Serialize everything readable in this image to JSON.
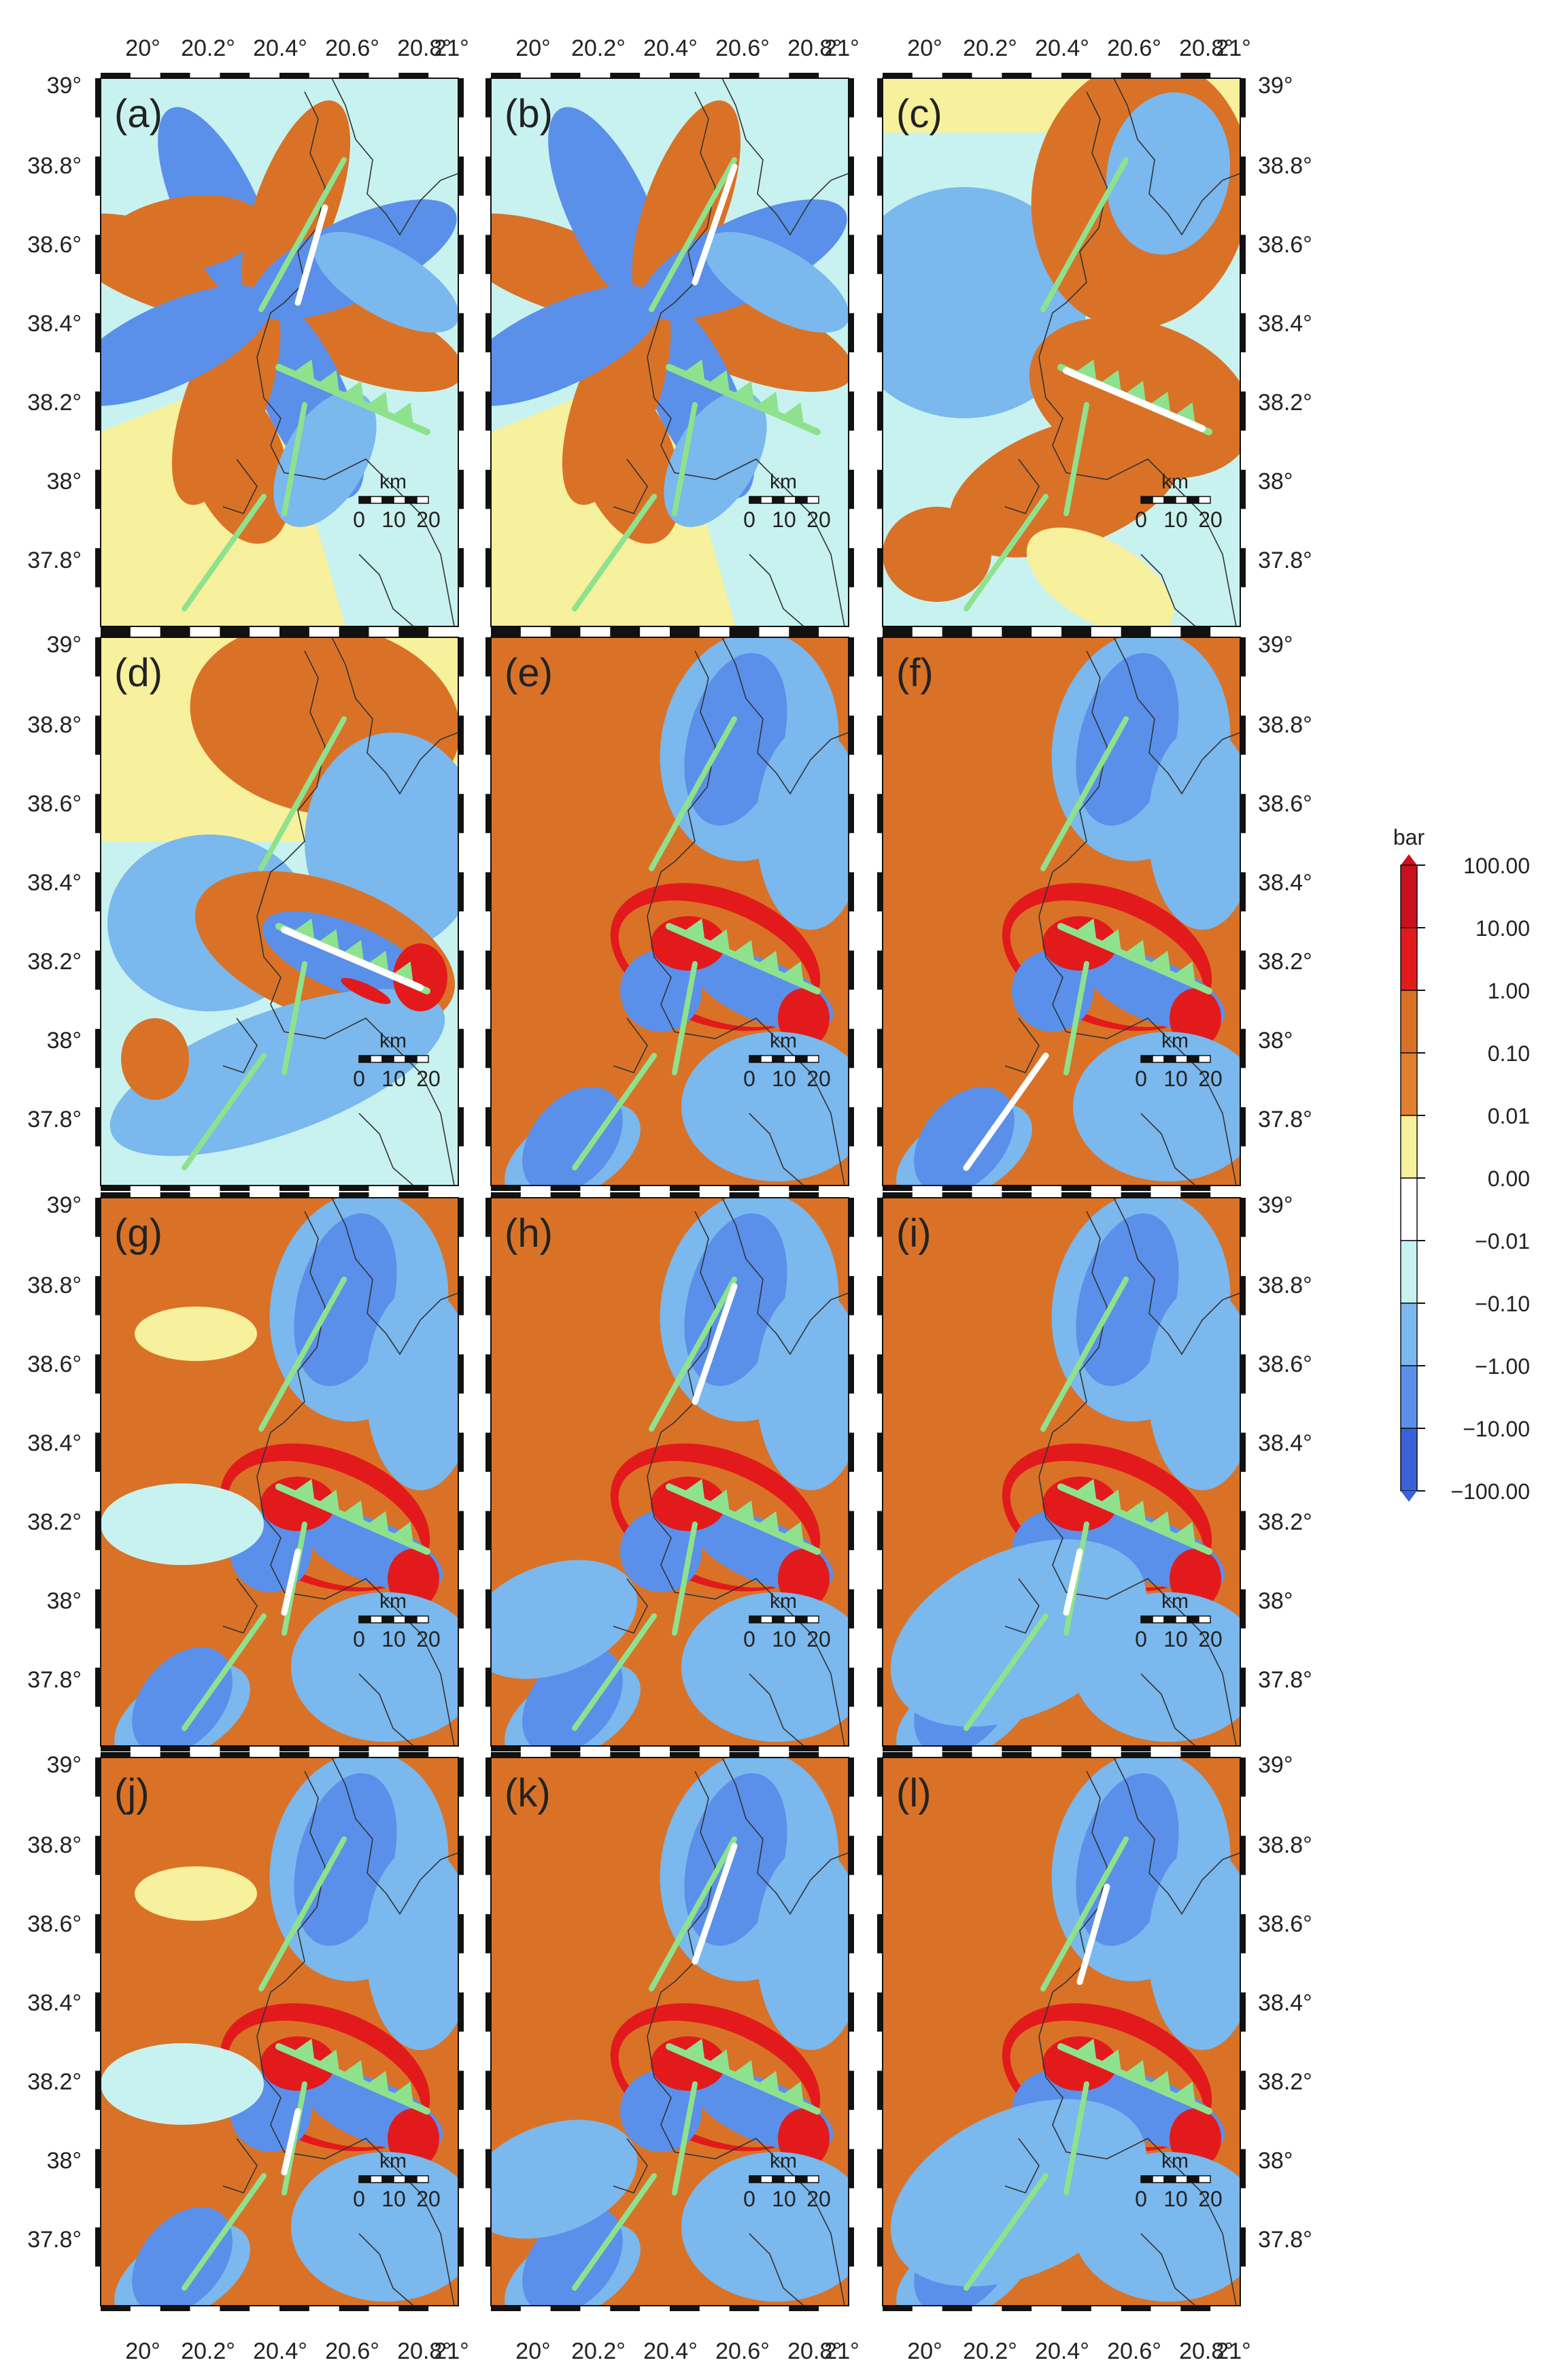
{
  "figure": {
    "top_lon_labels": [
      "20°",
      "20.2°",
      "20.4°",
      "20.6°",
      "20.8°",
      "21°"
    ],
    "bottom_lon_labels": [
      "20°",
      "20.2°",
      "20.4°",
      "20.6°",
      "20.8°",
      "21°"
    ],
    "left_lat_labels": [
      "39°",
      "38.8°",
      "38.6°",
      "38.4°",
      "38.2°",
      "38°",
      "37.8°"
    ],
    "right_lat_labels": [
      "39°",
      "38.8°",
      "38.6°",
      "38.4°",
      "38.2°",
      "38°",
      "37.8°"
    ],
    "scalebar": {
      "unit": "km",
      "ticks": [
        "0",
        "10",
        "20"
      ]
    }
  },
  "panels": [
    {
      "label": "(a)",
      "style": "a",
      "highlight": "north"
    },
    {
      "label": "(b)",
      "style": "a",
      "highlight": "north2"
    },
    {
      "label": "(c)",
      "style": "c",
      "highlight": "thrust"
    },
    {
      "label": "(d)",
      "style": "d",
      "highlight": "thrust"
    },
    {
      "label": "(e)",
      "style": "e",
      "highlight": "none"
    },
    {
      "label": "(f)",
      "style": "e",
      "highlight": "south"
    },
    {
      "label": "(g)",
      "style": "e",
      "highlight": "mid"
    },
    {
      "label": "(h)",
      "style": "e",
      "highlight": "north2"
    },
    {
      "label": "(i)",
      "style": "e",
      "highlight": "mid"
    },
    {
      "label": "(j)",
      "style": "e",
      "highlight": "mid"
    },
    {
      "label": "(k)",
      "style": "e",
      "highlight": "north2"
    },
    {
      "label": "(l)",
      "style": "e",
      "highlight": "north"
    }
  ],
  "colorbar": {
    "unit": "bar",
    "labels": [
      "100.00",
      "10.00",
      "1.00",
      "0.10",
      "0.01",
      "0.00",
      "−0.01",
      "−0.10",
      "−1.00",
      "−10.00",
      "−100.00"
    ],
    "colors": [
      "#c8101e",
      "#e31a1c",
      "#d97227",
      "#e07f2d",
      "#f7f09c",
      "#ffffff",
      "#c8f2f0",
      "#7ab8ee",
      "#5a90ea",
      "#3a62d8"
    ]
  },
  "colors": {
    "dark_red": "#e31a1c",
    "orange": "#d97227",
    "yellow": "#f7f09c",
    "light_cyan": "#c8f2f0",
    "light_blue": "#7ab8ee",
    "blue": "#5a90ea",
    "dark_blue": "#3a62d8",
    "fault": "#8ee28e",
    "highlight": "#ffffff"
  }
}
